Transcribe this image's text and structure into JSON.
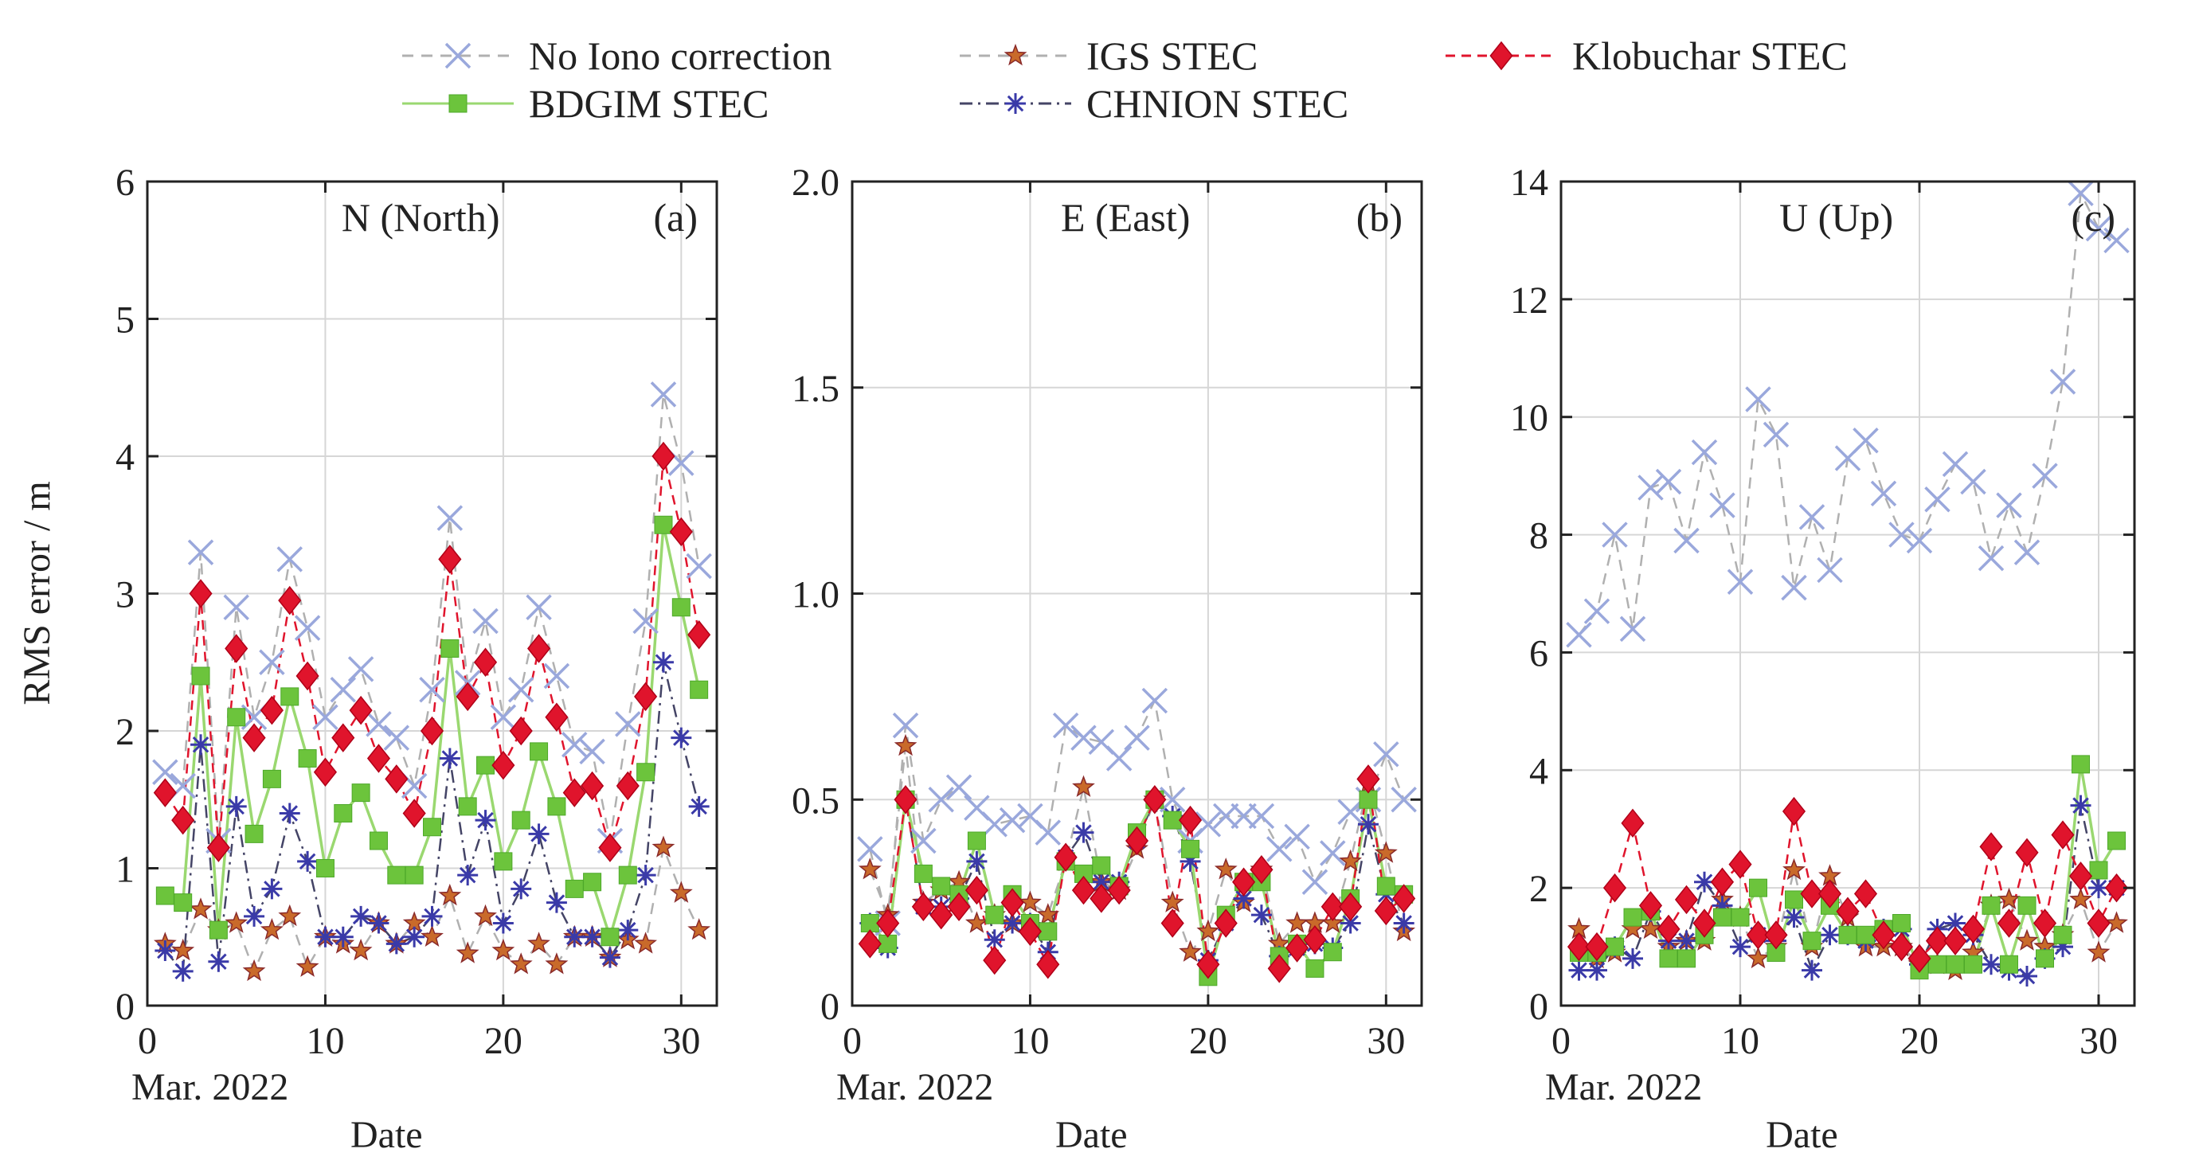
{
  "figure": {
    "y_axis_label": "RMS error / m",
    "x_axis_label": "Date",
    "date_caption": "Mar. 2022"
  },
  "legend": [
    {
      "key": "no_iono",
      "label": "No Iono correction"
    },
    {
      "key": "igs",
      "label": "IGS STEC"
    },
    {
      "key": "klobuchar",
      "label": "Klobuchar STEC"
    },
    {
      "key": "bdgim",
      "label": "BDGIM STEC"
    },
    {
      "key": "chnion",
      "label": "CHNION STEC"
    }
  ],
  "series_styles": {
    "no_iono": {
      "color": "#9aa8dc",
      "line_color": "#b0b0b0",
      "dash": "14 10",
      "marker": "x"
    },
    "igs": {
      "color": "#c0504d",
      "line_color": "#b0b0b0",
      "dash": "14 10",
      "marker": "star"
    },
    "klobuchar": {
      "color": "#e0142c",
      "line_color": "#e0142c",
      "dash": "12 8",
      "marker": "diamond"
    },
    "bdgim": {
      "color": "#6cc43c",
      "line_color": "#9ad870",
      "dash": "",
      "marker": "square"
    },
    "chnion": {
      "color": "#3a3aa8",
      "line_color": "#444466",
      "dash": "16 7 3 7",
      "marker": "asterisk"
    }
  },
  "chart_data": [
    {
      "type": "line",
      "panel_title": "N (North)",
      "panel_tag": "(a)",
      "xlabel": "Date",
      "ylabel": "RMS error / m",
      "xlim": [
        0,
        32
      ],
      "ylim": [
        0,
        6
      ],
      "xticks": [
        0,
        10,
        20,
        30
      ],
      "yticks": [
        0,
        1,
        2,
        3,
        4,
        5,
        6
      ],
      "ytick_labels": [
        "0",
        "1",
        "2",
        "3",
        "4",
        "5",
        "6"
      ],
      "grid": true,
      "x": [
        1,
        2,
        3,
        4,
        5,
        6,
        7,
        8,
        9,
        10,
        11,
        12,
        13,
        14,
        15,
        16,
        17,
        18,
        19,
        20,
        21,
        22,
        23,
        24,
        25,
        26,
        27,
        28,
        29,
        30,
        31
      ],
      "series": [
        {
          "key": "no_iono",
          "name": "No Iono correction",
          "values": [
            1.7,
            1.6,
            3.3,
            1.2,
            2.9,
            2.1,
            2.5,
            3.25,
            2.75,
            2.1,
            2.3,
            2.45,
            2.05,
            1.95,
            1.6,
            2.3,
            3.55,
            2.35,
            2.8,
            2.1,
            2.3,
            2.9,
            2.4,
            1.9,
            1.85,
            1.2,
            2.05,
            2.8,
            4.45,
            3.95,
            3.2
          ]
        },
        {
          "key": "igs",
          "name": "IGS STEC",
          "values": [
            0.45,
            0.4,
            0.7,
            0.55,
            0.6,
            0.25,
            0.55,
            0.65,
            0.28,
            0.5,
            0.45,
            0.4,
            0.6,
            0.45,
            0.6,
            0.5,
            0.8,
            0.38,
            0.65,
            0.4,
            0.3,
            0.45,
            0.3,
            0.5,
            0.5,
            0.35,
            0.48,
            0.45,
            1.15,
            0.82,
            0.55
          ]
        },
        {
          "key": "klobuchar",
          "name": "Klobuchar STEC",
          "values": [
            1.55,
            1.35,
            3.0,
            1.15,
            2.6,
            1.95,
            2.15,
            2.95,
            2.4,
            1.7,
            1.95,
            2.15,
            1.8,
            1.65,
            1.4,
            2.0,
            3.25,
            2.25,
            2.5,
            1.75,
            2.0,
            2.6,
            2.1,
            1.55,
            1.6,
            1.15,
            1.6,
            2.25,
            4.0,
            3.45,
            2.7
          ]
        },
        {
          "key": "bdgim",
          "name": "BDGIM STEC",
          "values": [
            0.8,
            0.75,
            2.4,
            0.55,
            2.1,
            1.25,
            1.65,
            2.25,
            1.8,
            1.0,
            1.4,
            1.55,
            1.2,
            0.95,
            0.95,
            1.3,
            2.6,
            1.45,
            1.75,
            1.05,
            1.35,
            1.85,
            1.45,
            0.85,
            0.9,
            0.5,
            0.95,
            1.7,
            3.5,
            2.9,
            2.3
          ]
        },
        {
          "key": "chnion",
          "name": "CHNION STEC",
          "values": [
            0.4,
            0.25,
            1.9,
            0.32,
            1.45,
            0.65,
            0.85,
            1.4,
            1.05,
            0.5,
            0.5,
            0.65,
            0.6,
            0.45,
            0.5,
            0.65,
            1.8,
            0.95,
            1.35,
            0.6,
            0.85,
            1.25,
            0.75,
            0.5,
            0.5,
            0.35,
            0.55,
            0.95,
            2.5,
            1.95,
            1.45
          ]
        }
      ]
    },
    {
      "type": "line",
      "panel_title": "E (East)",
      "panel_tag": "(b)",
      "xlabel": "Date",
      "ylabel": "",
      "xlim": [
        0,
        32
      ],
      "ylim": [
        0,
        2
      ],
      "xticks": [
        0,
        10,
        20,
        30
      ],
      "yticks": [
        0,
        0.5,
        1.0,
        1.5,
        2.0
      ],
      "ytick_labels": [
        "0",
        "0.5",
        "1.0",
        "1.5",
        "2.0"
      ],
      "grid": true,
      "x": [
        1,
        2,
        3,
        4,
        5,
        6,
        7,
        8,
        9,
        10,
        11,
        12,
        13,
        14,
        15,
        16,
        17,
        18,
        19,
        20,
        21,
        22,
        23,
        24,
        25,
        26,
        27,
        28,
        29,
        30,
        31
      ],
      "series": [
        {
          "key": "no_iono",
          "name": "No Iono correction",
          "values": [
            0.38,
            0.2,
            0.68,
            0.4,
            0.5,
            0.53,
            0.48,
            0.44,
            0.45,
            0.46,
            0.42,
            0.68,
            0.65,
            0.64,
            0.6,
            0.65,
            0.74,
            0.5,
            0.4,
            0.44,
            0.46,
            0.46,
            0.46,
            0.38,
            0.41,
            0.3,
            0.37,
            0.47,
            0.5,
            0.61,
            0.5
          ]
        },
        {
          "key": "igs",
          "name": "IGS STEC",
          "values": [
            0.33,
            0.22,
            0.63,
            0.25,
            0.28,
            0.3,
            0.2,
            0.22,
            0.2,
            0.25,
            0.22,
            0.35,
            0.53,
            0.3,
            0.28,
            0.38,
            0.5,
            0.25,
            0.13,
            0.18,
            0.33,
            0.25,
            0.33,
            0.15,
            0.2,
            0.2,
            0.2,
            0.35,
            0.54,
            0.37,
            0.18
          ]
        },
        {
          "key": "klobuchar",
          "name": "Klobuchar STEC",
          "values": [
            0.15,
            0.2,
            0.5,
            0.24,
            0.22,
            0.24,
            0.28,
            0.11,
            0.25,
            0.18,
            0.1,
            0.36,
            0.28,
            0.26,
            0.28,
            0.4,
            0.5,
            0.2,
            0.45,
            0.1,
            0.2,
            0.3,
            0.33,
            0.09,
            0.14,
            0.16,
            0.24,
            0.24,
            0.55,
            0.23,
            0.26
          ]
        },
        {
          "key": "bdgim",
          "name": "BDGIM STEC",
          "values": [
            0.2,
            0.15,
            0.5,
            0.32,
            0.29,
            0.27,
            0.4,
            0.22,
            0.27,
            0.2,
            0.18,
            0.35,
            0.32,
            0.34,
            0.29,
            0.42,
            0.5,
            0.45,
            0.38,
            0.07,
            0.22,
            0.3,
            0.3,
            0.12,
            0.15,
            0.09,
            0.13,
            0.26,
            0.5,
            0.29,
            0.27
          ]
        },
        {
          "key": "chnion",
          "name": "CHNION STEC",
          "values": [
            0.2,
            0.14,
            0.5,
            0.24,
            0.24,
            0.26,
            0.35,
            0.16,
            0.2,
            0.2,
            0.13,
            0.36,
            0.42,
            0.3,
            0.3,
            0.4,
            0.5,
            0.46,
            0.35,
            0.11,
            0.2,
            0.26,
            0.22,
            0.12,
            0.14,
            0.15,
            0.14,
            0.2,
            0.44,
            0.27,
            0.2
          ]
        }
      ]
    },
    {
      "type": "line",
      "panel_title": "U (Up)",
      "panel_tag": "(c)",
      "xlabel": "Date",
      "ylabel": "",
      "xlim": [
        0,
        32
      ],
      "ylim": [
        0,
        14
      ],
      "xticks": [
        0,
        10,
        20,
        30
      ],
      "yticks": [
        0,
        2,
        4,
        6,
        8,
        10,
        12,
        14
      ],
      "ytick_labels": [
        "0",
        "2",
        "4",
        "6",
        "8",
        "10",
        "12",
        "14"
      ],
      "grid": true,
      "x": [
        1,
        2,
        3,
        4,
        5,
        6,
        7,
        8,
        9,
        10,
        11,
        12,
        13,
        14,
        15,
        16,
        17,
        18,
        19,
        20,
        21,
        22,
        23,
        24,
        25,
        26,
        27,
        28,
        29,
        30,
        31
      ],
      "series": [
        {
          "key": "no_iono",
          "name": "No Iono correction",
          "values": [
            6.3,
            6.7,
            8.0,
            6.4,
            8.8,
            8.9,
            7.9,
            9.4,
            8.5,
            7.2,
            10.3,
            9.7,
            7.1,
            8.3,
            7.4,
            9.3,
            9.6,
            8.7,
            8.0,
            7.9,
            8.6,
            9.2,
            8.9,
            7.6,
            8.5,
            7.7,
            9.0,
            10.6,
            13.8,
            13.2,
            13.0
          ]
        },
        {
          "key": "igs",
          "name": "IGS STEC",
          "values": [
            1.3,
            0.8,
            0.9,
            1.3,
            1.3,
            1.0,
            1.1,
            1.1,
            1.8,
            1.5,
            0.8,
            1.0,
            2.3,
            1.0,
            2.2,
            1.5,
            1.0,
            1.0,
            1.0,
            0.7,
            0.7,
            0.6,
            0.9,
            1.7,
            1.8,
            1.1,
            1.0,
            1.2,
            1.8,
            0.9,
            1.4
          ]
        },
        {
          "key": "klobuchar",
          "name": "Klobuchar STEC",
          "values": [
            1.0,
            1.0,
            2.0,
            3.1,
            1.7,
            1.3,
            1.8,
            1.4,
            2.1,
            2.4,
            1.2,
            1.2,
            3.3,
            1.9,
            1.9,
            1.6,
            1.9,
            1.2,
            1.0,
            0.8,
            1.1,
            1.1,
            1.3,
            2.7,
            1.4,
            2.6,
            1.4,
            2.9,
            2.2,
            1.4,
            2.0
          ]
        },
        {
          "key": "bdgim",
          "name": "BDGIM STEC",
          "values": [
            0.9,
            0.9,
            1.0,
            1.5,
            1.6,
            0.8,
            0.8,
            1.2,
            1.5,
            1.5,
            2.0,
            0.9,
            1.8,
            1.1,
            1.7,
            1.2,
            1.2,
            1.3,
            1.4,
            0.6,
            0.7,
            0.7,
            0.7,
            1.7,
            0.7,
            1.7,
            0.8,
            1.2,
            4.1,
            2.3,
            2.8
          ]
        },
        {
          "key": "chnion",
          "name": "CHNION STEC",
          "values": [
            0.6,
            0.6,
            1.0,
            0.8,
            1.6,
            1.1,
            1.1,
            2.1,
            1.7,
            1.0,
            1.2,
            1.1,
            1.5,
            0.6,
            1.2,
            1.2,
            1.1,
            1.3,
            1.3,
            0.7,
            1.3,
            1.4,
            1.2,
            0.7,
            0.6,
            0.5,
            0.8,
            1.0,
            3.4,
            2.0,
            2.0
          ]
        }
      ]
    }
  ]
}
